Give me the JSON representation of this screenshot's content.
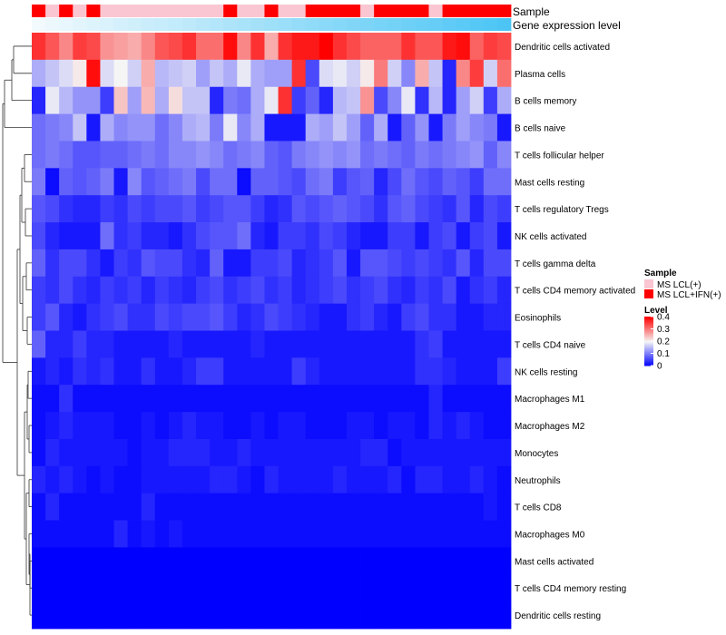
{
  "chart_data": {
    "type": "heatmap",
    "title": "",
    "annotation_tracks": [
      {
        "name": "Sample",
        "values": [
          "MS LCL+IFN(+)",
          "MS LCL(+)",
          "MS LCL+IFN(+)",
          "MS LCL(+)",
          "MS LCL+IFN(+)",
          "MS LCL(+)",
          "MS LCL(+)",
          "MS LCL(+)",
          "MS LCL(+)",
          "MS LCL(+)",
          "MS LCL(+)",
          "MS LCL(+)",
          "MS LCL(+)",
          "MS LCL(+)",
          "MS LCL+IFN(+)",
          "MS LCL(+)",
          "MS LCL(+)",
          "MS LCL+IFN(+)",
          "MS LCL(+)",
          "MS LCL(+)",
          "MS LCL+IFN(+)",
          "MS LCL+IFN(+)",
          "MS LCL+IFN(+)",
          "MS LCL+IFN(+)",
          "MS LCL(+)",
          "MS LCL+IFN(+)",
          "MS LCL+IFN(+)",
          "MS LCL+IFN(+)",
          "MS LCL+IFN(+)",
          "MS LCL(+)",
          "MS LCL+IFN(+)",
          "MS LCL+IFN(+)",
          "MS LCL+IFN(+)",
          "MS LCL+IFN(+)",
          "MS LCL+IFN(+)"
        ]
      },
      {
        "name": "Gene expression level",
        "values": [
          0.0,
          0.03,
          0.06,
          0.09,
          0.12,
          0.15,
          0.18,
          0.21,
          0.24,
          0.26,
          0.29,
          0.32,
          0.35,
          0.38,
          0.41,
          0.44,
          0.47,
          0.5,
          0.53,
          0.56,
          0.59,
          0.62,
          0.65,
          0.68,
          0.71,
          0.74,
          0.76,
          0.79,
          0.82,
          0.85,
          0.88,
          0.91,
          0.94,
          0.97,
          1.0
        ]
      }
    ],
    "rows": [
      "Dendritic cells activated",
      "Plasma cells",
      "B cells memory",
      "B cells naive",
      "T cells follicular helper",
      "Mast cells resting",
      "T cells regulatory  Tregs",
      "NK cells activated",
      "T cells gamma delta",
      "T cells CD4 memory activated",
      "Eosinophils",
      "T cells CD4 naive",
      "NK cells resting",
      "Macrophages M1",
      "Macrophages M2",
      "Monocytes",
      "Neutrophils",
      "T cells CD8",
      "Macrophages M0",
      "Mast cells activated",
      "T cells CD4 memory resting",
      "Dendritic cells resting"
    ],
    "matrix": [
      [
        0.36,
        0.33,
        0.29,
        0.35,
        0.34,
        0.28,
        0.27,
        0.26,
        0.29,
        0.33,
        0.34,
        0.36,
        0.31,
        0.31,
        0.39,
        0.29,
        0.36,
        0.26,
        0.36,
        0.38,
        0.38,
        0.4,
        0.36,
        0.34,
        0.32,
        0.32,
        0.32,
        0.36,
        0.33,
        0.33,
        0.38,
        0.39,
        0.32,
        0.35,
        0.34
      ],
      [
        0.14,
        0.16,
        0.18,
        0.21,
        0.39,
        0.18,
        0.2,
        0.17,
        0.26,
        0.15,
        0.16,
        0.17,
        0.13,
        0.16,
        0.14,
        0.19,
        0.14,
        0.13,
        0.13,
        0.36,
        0.06,
        0.18,
        0.19,
        0.17,
        0.21,
        0.3,
        0.17,
        0.11,
        0.26,
        0.16,
        0.03,
        0.29,
        0.35,
        0.17,
        0.31
      ],
      [
        0.03,
        0.19,
        0.15,
        0.12,
        0.12,
        0.05,
        0.24,
        0.13,
        0.25,
        0.14,
        0.22,
        0.16,
        0.16,
        0.03,
        0.1,
        0.09,
        0.14,
        0.19,
        0.36,
        0.05,
        0.08,
        0.03,
        0.15,
        0.16,
        0.28,
        0.06,
        0.11,
        0.19,
        0.04,
        0.15,
        0.03,
        0.13,
        0.17,
        0.05,
        0.14
      ],
      [
        0.09,
        0.1,
        0.11,
        0.16,
        0.02,
        0.14,
        0.11,
        0.12,
        0.12,
        0.09,
        0.11,
        0.14,
        0.15,
        0.1,
        0.19,
        0.11,
        0.14,
        0.02,
        0.02,
        0.02,
        0.14,
        0.13,
        0.16,
        0.13,
        0.08,
        0.14,
        0.02,
        0.08,
        0.12,
        0.02,
        0.1,
        0.13,
        0.11,
        0.1,
        0.02
      ],
      [
        0.09,
        0.1,
        0.09,
        0.07,
        0.07,
        0.08,
        0.08,
        0.09,
        0.1,
        0.09,
        0.11,
        0.11,
        0.12,
        0.11,
        0.09,
        0.1,
        0.11,
        0.08,
        0.07,
        0.1,
        0.11,
        0.12,
        0.11,
        0.12,
        0.09,
        0.1,
        0.09,
        0.08,
        0.1,
        0.09,
        0.1,
        0.11,
        0.12,
        0.08,
        0.11
      ],
      [
        0.1,
        0.01,
        0.08,
        0.07,
        0.08,
        0.1,
        0.02,
        0.11,
        0.07,
        0.08,
        0.09,
        0.1,
        0.06,
        0.09,
        0.09,
        0.01,
        0.08,
        0.08,
        0.07,
        0.06,
        0.09,
        0.1,
        0.05,
        0.07,
        0.08,
        0.03,
        0.06,
        0.09,
        0.07,
        0.06,
        0.08,
        0.07,
        0.05,
        0.09,
        0.09
      ],
      [
        0.07,
        0.06,
        0.04,
        0.03,
        0.03,
        0.05,
        0.04,
        0.06,
        0.05,
        0.06,
        0.06,
        0.07,
        0.05,
        0.06,
        0.07,
        0.07,
        0.05,
        0.03,
        0.04,
        0.07,
        0.06,
        0.07,
        0.08,
        0.07,
        0.06,
        0.04,
        0.07,
        0.08,
        0.06,
        0.05,
        0.04,
        0.07,
        0.03,
        0.06,
        0.05
      ],
      [
        0.06,
        0.03,
        0.02,
        0.02,
        0.02,
        0.09,
        0.04,
        0.05,
        0.03,
        0.03,
        0.02,
        0.04,
        0.06,
        0.07,
        0.07,
        0.09,
        0.03,
        0.02,
        0.05,
        0.05,
        0.04,
        0.06,
        0.05,
        0.03,
        0.02,
        0.02,
        0.05,
        0.05,
        0.02,
        0.05,
        0.06,
        0.02,
        0.05,
        0.06,
        0.02
      ],
      [
        0.08,
        0.04,
        0.06,
        0.06,
        0.04,
        0.02,
        0.05,
        0.04,
        0.07,
        0.06,
        0.06,
        0.04,
        0.03,
        0.08,
        0.02,
        0.02,
        0.05,
        0.05,
        0.06,
        0.03,
        0.04,
        0.05,
        0.07,
        0.02,
        0.07,
        0.07,
        0.06,
        0.05,
        0.06,
        0.05,
        0.04,
        0.07,
        0.03,
        0.06,
        0.06
      ],
      [
        0.05,
        0.04,
        0.06,
        0.04,
        0.03,
        0.05,
        0.04,
        0.05,
        0.03,
        0.05,
        0.04,
        0.03,
        0.05,
        0.06,
        0.04,
        0.05,
        0.06,
        0.04,
        0.05,
        0.03,
        0.04,
        0.05,
        0.06,
        0.04,
        0.05,
        0.06,
        0.04,
        0.03,
        0.05,
        0.04,
        0.06,
        0.02,
        0.04,
        0.05,
        0.03
      ],
      [
        0.05,
        0.07,
        0.03,
        0.02,
        0.04,
        0.05,
        0.06,
        0.04,
        0.04,
        0.06,
        0.05,
        0.06,
        0.06,
        0.07,
        0.05,
        0.03,
        0.04,
        0.06,
        0.05,
        0.04,
        0.03,
        0.02,
        0.02,
        0.04,
        0.05,
        0.03,
        0.02,
        0.05,
        0.06,
        0.04,
        0.04,
        0.02,
        0.02,
        0.03,
        0.03
      ],
      [
        0.08,
        0.03,
        0.03,
        0.05,
        0.03,
        0.03,
        0.02,
        0.02,
        0.02,
        0.02,
        0.03,
        0.02,
        0.02,
        0.02,
        0.02,
        0.02,
        0.03,
        0.02,
        0.02,
        0.02,
        0.02,
        0.02,
        0.02,
        0.02,
        0.02,
        0.02,
        0.02,
        0.02,
        0.04,
        0.05,
        0.02,
        0.02,
        0.02,
        0.02,
        0.02
      ],
      [
        0.02,
        0.03,
        0.02,
        0.04,
        0.03,
        0.04,
        0.02,
        0.02,
        0.04,
        0.02,
        0.02,
        0.03,
        0.05,
        0.05,
        0.02,
        0.02,
        0.02,
        0.02,
        0.02,
        0.05,
        0.03,
        0.02,
        0.02,
        0.02,
        0.02,
        0.02,
        0.02,
        0.02,
        0.04,
        0.04,
        0.03,
        0.02,
        0.02,
        0.02,
        0.05
      ],
      [
        0.01,
        0.01,
        0.04,
        0.01,
        0.01,
        0.01,
        0.01,
        0.01,
        0.01,
        0.01,
        0.01,
        0.01,
        0.01,
        0.01,
        0.01,
        0.01,
        0.01,
        0.01,
        0.01,
        0.01,
        0.01,
        0.01,
        0.01,
        0.01,
        0.01,
        0.01,
        0.01,
        0.01,
        0.01,
        0.03,
        0.01,
        0.01,
        0.01,
        0.01,
        0.01
      ],
      [
        0.01,
        0.02,
        0.03,
        0.02,
        0.02,
        0.02,
        0.01,
        0.01,
        0.02,
        0.01,
        0.02,
        0.03,
        0.02,
        0.02,
        0.01,
        0.01,
        0.02,
        0.01,
        0.02,
        0.02,
        0.01,
        0.01,
        0.01,
        0.02,
        0.02,
        0.01,
        0.02,
        0.02,
        0.01,
        0.03,
        0.02,
        0.03,
        0.02,
        0.01,
        0.01
      ],
      [
        0.01,
        0.03,
        0.02,
        0.02,
        0.02,
        0.02,
        0.02,
        0.01,
        0.02,
        0.02,
        0.03,
        0.03,
        0.03,
        0.02,
        0.02,
        0.03,
        0.02,
        0.02,
        0.02,
        0.02,
        0.02,
        0.02,
        0.02,
        0.02,
        0.03,
        0.03,
        0.01,
        0.02,
        0.02,
        0.02,
        0.02,
        0.02,
        0.02,
        0.02,
        0.02
      ],
      [
        0.03,
        0.02,
        0.03,
        0.02,
        0.01,
        0.02,
        0.01,
        0.01,
        0.02,
        0.02,
        0.02,
        0.02,
        0.02,
        0.03,
        0.03,
        0.02,
        0.01,
        0.03,
        0.02,
        0.02,
        0.02,
        0.02,
        0.03,
        0.02,
        0.02,
        0.02,
        0.03,
        0.01,
        0.03,
        0.03,
        0.02,
        0.02,
        0.03,
        0.02,
        0.01
      ],
      [
        0.01,
        0.03,
        0.01,
        0.01,
        0.01,
        0.01,
        0.01,
        0.01,
        0.03,
        0.01,
        0.01,
        0.01,
        0.01,
        0.01,
        0.01,
        0.01,
        0.01,
        0.01,
        0.01,
        0.01,
        0.01,
        0.01,
        0.01,
        0.01,
        0.01,
        0.01,
        0.01,
        0.01,
        0.01,
        0.01,
        0.01,
        0.01,
        0.01,
        0.02,
        0.01
      ],
      [
        0.01,
        0.01,
        0.01,
        0.01,
        0.01,
        0.01,
        0.03,
        0.01,
        0.02,
        0.01,
        0.02,
        0.01,
        0.01,
        0.01,
        0.01,
        0.01,
        0.01,
        0.01,
        0.01,
        0.01,
        0.01,
        0.01,
        0.01,
        0.01,
        0.01,
        0.01,
        0.01,
        0.01,
        0.01,
        0.01,
        0.01,
        0.01,
        0.01,
        0.01,
        0.01
      ],
      [
        0.0,
        0.0,
        0.0,
        0.0,
        0.0,
        0.0,
        0.0,
        0.0,
        0.0,
        0.0,
        0.0,
        0.0,
        0.0,
        0.0,
        0.0,
        0.0,
        0.0,
        0.0,
        0.0,
        0.0,
        0.0,
        0.0,
        0.0,
        0.0,
        0.0,
        0.0,
        0.0,
        0.0,
        0.0,
        0.0,
        0.0,
        0.0,
        0.0,
        0.0,
        0.0
      ],
      [
        0.0,
        0.0,
        0.0,
        0.0,
        0.0,
        0.0,
        0.0,
        0.0,
        0.0,
        0.0,
        0.0,
        0.0,
        0.0,
        0.0,
        0.0,
        0.0,
        0.0,
        0.0,
        0.0,
        0.0,
        0.0,
        0.0,
        0.0,
        0.0,
        0.0,
        0.0,
        0.0,
        0.0,
        0.0,
        0.0,
        0.0,
        0.0,
        0.0,
        0.0,
        0.0
      ],
      [
        0.0,
        0.0,
        0.0,
        0.0,
        0.0,
        0.0,
        0.0,
        0.0,
        0.0,
        0.0,
        0.0,
        0.0,
        0.0,
        0.0,
        0.0,
        0.0,
        0.0,
        0.0,
        0.0,
        0.0,
        0.0,
        0.0,
        0.0,
        0.0,
        0.0,
        0.0,
        0.0,
        0.0,
        0.0,
        0.0,
        0.0,
        0.0,
        0.0,
        0.0,
        0.0
      ]
    ],
    "legend": {
      "sample": {
        "title": "Sample",
        "entries": [
          {
            "label": "MS LCL(+)",
            "color": "#f9c6d1"
          },
          {
            "label": "MS LCL+IFN(+)",
            "color": "#ff0000"
          }
        ]
      },
      "level": {
        "title": "Level",
        "ticks": [
          "0.4",
          "0.3",
          "0.2",
          "0.1",
          "0"
        ],
        "tick_values": [
          0.4,
          0.3,
          0.2,
          0.1,
          0
        ],
        "range": [
          0,
          0.4
        ]
      }
    },
    "colors": {
      "low": "#0000ff",
      "mid": "#f5f5f5",
      "high": "#ff0000",
      "expr_low": "#f2fafd",
      "expr_high": "#4cc5f5"
    }
  }
}
